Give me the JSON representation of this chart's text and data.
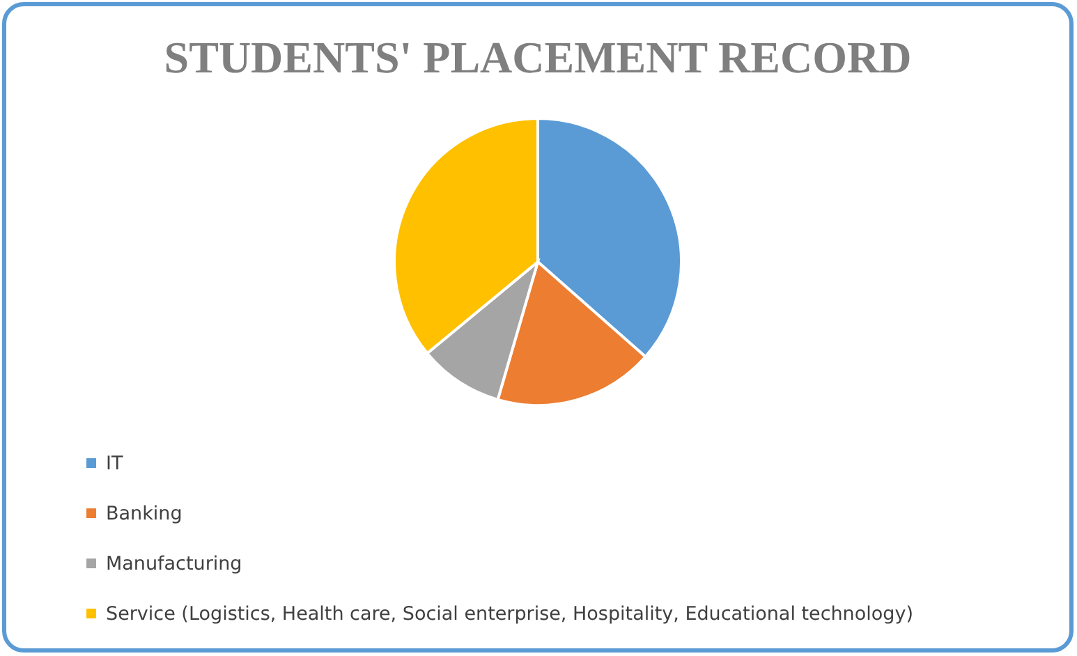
{
  "chart_data": {
    "type": "pie",
    "title": "STUDENTS' PLACEMENT RECORD",
    "categories": [
      "IT",
      "Banking",
      "Manufacturing",
      "Service (Logistics, Health care, Social enterprise, Hospitality, Educational technology)"
    ],
    "values": [
      36.5,
      18,
      9.5,
      36
    ],
    "colors": [
      "#5b9bd5",
      "#ed7d31",
      "#a5a5a5",
      "#ffc000"
    ],
    "legend": "bottom"
  }
}
